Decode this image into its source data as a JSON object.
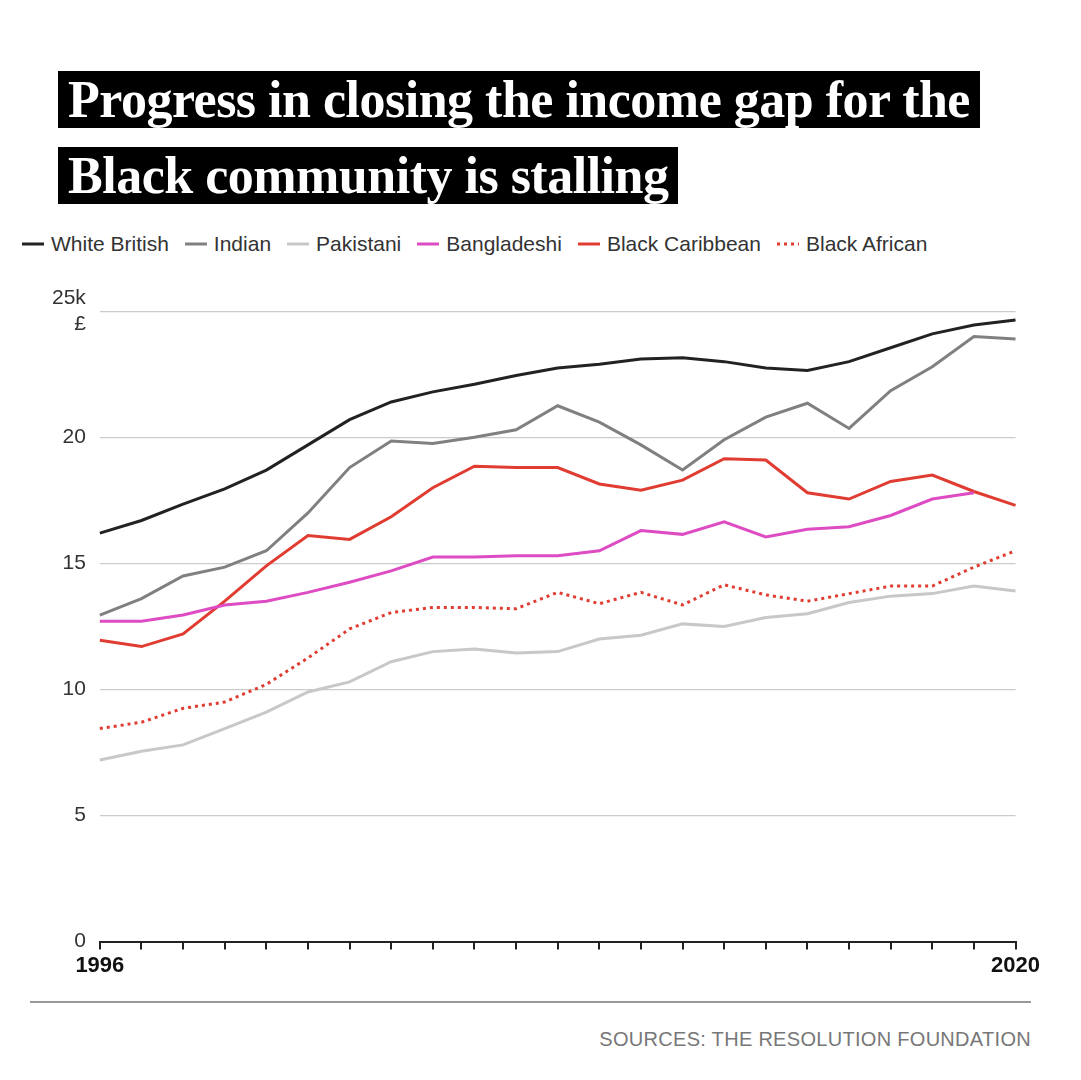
{
  "chart_data": {
    "type": "line",
    "title": "Progress in closing the income gap for the Black community is stalling",
    "source": "SOURCES: THE RESOLUTION FOUNDATION",
    "categories": [
      "1996",
      null,
      null,
      null,
      null,
      null,
      null,
      null,
      null,
      null,
      null,
      null,
      null,
      null,
      null,
      null,
      null,
      null,
      null,
      null,
      null,
      null,
      "2020"
    ],
    "series": [
      {
        "name": "White British",
        "color": "#222222",
        "line_style": "solid",
        "values": [
          16.2,
          16.7,
          17.35,
          17.95,
          18.7,
          19.7,
          20.7,
          21.4,
          21.8,
          22.1,
          22.45,
          22.75,
          22.9,
          23.1,
          23.15,
          23.0,
          22.75,
          22.65,
          23.0,
          23.55,
          24.1,
          24.45,
          24.65
        ]
      },
      {
        "name": "Indian",
        "color": "#808080",
        "line_style": "solid",
        "values": [
          12.95,
          13.6,
          14.5,
          14.85,
          15.5,
          17.0,
          18.8,
          19.85,
          19.75,
          20.0,
          20.3,
          21.25,
          20.6,
          19.7,
          18.7,
          19.9,
          20.8,
          21.35,
          20.35,
          21.85,
          22.8,
          24.0,
          23.9
        ]
      },
      {
        "name": "Pakistani",
        "color": "#c8c8c8",
        "line_style": "solid",
        "values": [
          7.2,
          7.55,
          7.8,
          8.45,
          9.1,
          9.9,
          10.3,
          11.1,
          11.5,
          11.6,
          11.45,
          11.5,
          12.0,
          12.15,
          12.6,
          12.5,
          12.85,
          13.0,
          13.45,
          13.7,
          13.8,
          14.1,
          13.9
        ]
      },
      {
        "name": "Bangladeshi",
        "color": "#de4cc4",
        "line_style": "solid",
        "values": [
          12.7,
          12.7,
          12.95,
          13.35,
          13.5,
          13.85,
          14.25,
          14.7,
          15.25,
          15.25,
          15.3,
          15.3,
          15.5,
          16.3,
          16.15,
          16.65,
          16.05,
          16.35,
          16.45,
          16.9,
          17.55,
          17.8,
          null
        ]
      },
      {
        "name": "Black Caribbean",
        "color": "#e03c31",
        "line_style": "solid",
        "values": [
          11.95,
          11.7,
          12.2,
          13.5,
          14.9,
          16.1,
          15.95,
          16.85,
          18.0,
          18.85,
          18.8,
          18.8,
          18.15,
          17.9,
          18.3,
          19.15,
          19.1,
          17.8,
          17.55,
          18.25,
          18.5,
          17.85,
          17.3
        ]
      },
      {
        "name": "Black African",
        "color": "#e03c31",
        "line_style": "dotted",
        "values": [
          8.45,
          8.7,
          9.25,
          9.5,
          10.2,
          11.25,
          12.4,
          13.05,
          13.25,
          13.25,
          13.2,
          13.85,
          13.4,
          13.85,
          13.35,
          14.15,
          13.75,
          13.5,
          13.8,
          14.1,
          14.1,
          14.85,
          15.5
        ]
      }
    ],
    "ylim": [
      0,
      25
    ],
    "yticks": [
      0,
      5,
      10,
      15,
      20,
      {
        "value": 25,
        "label": [
          "25k",
          "£"
        ]
      }
    ],
    "grid": true,
    "legend": "top"
  }
}
